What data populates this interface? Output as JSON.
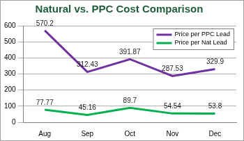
{
  "chart_data": {
    "type": "line",
    "title": "Natural vs. PPC Cost Comparison",
    "categories": [
      "Aug",
      "Sep",
      "Oct",
      "Nov",
      "Dec"
    ],
    "series": [
      {
        "name": "Price per PPC Lead",
        "color": "#7030a0",
        "values": [
          570.2,
          312.43,
          391.87,
          287.53,
          329.9
        ]
      },
      {
        "name": "Price per Nat Lead",
        "color": "#00b050",
        "values": [
          77.77,
          45.16,
          89.7,
          54.54,
          53.8
        ]
      }
    ],
    "ylim": [
      0,
      600
    ],
    "yticks": [
      0,
      100,
      200,
      300,
      400,
      500,
      600
    ],
    "grid": true,
    "legend": "upper right",
    "data_labels": true
  }
}
